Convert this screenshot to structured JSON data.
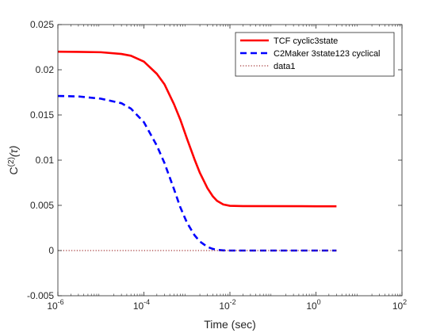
{
  "chart_data": {
    "type": "line",
    "xlabel": "Time (sec)",
    "ylabel": {
      "base": "C",
      "superscript": "(2)",
      "argument": "(τ)"
    },
    "xscale": "log",
    "xlim": [
      1e-06,
      100
    ],
    "ylim": [
      -0.005,
      0.025
    ],
    "x_ticks": [
      {
        "value": 1e-06,
        "base": "10",
        "exp": "-6"
      },
      {
        "value": 0.0001,
        "base": "10",
        "exp": "-4"
      },
      {
        "value": 0.01,
        "base": "10",
        "exp": "-2"
      },
      {
        "value": 1,
        "base": "10",
        "exp": "0"
      },
      {
        "value": 100,
        "base": "10",
        "exp": "2"
      }
    ],
    "y_ticks": [
      {
        "value": -0.005,
        "label": "-0.005"
      },
      {
        "value": 0,
        "label": "0"
      },
      {
        "value": 0.005,
        "label": "0.005"
      },
      {
        "value": 0.01,
        "label": "0.01"
      },
      {
        "value": 0.015,
        "label": "0.015"
      },
      {
        "value": 0.02,
        "label": "0.02"
      },
      {
        "value": 0.025,
        "label": "0.025"
      }
    ],
    "grid": false,
    "legend_position": "top-right",
    "series": [
      {
        "name": "TCF cyclic3state",
        "color": "#ff0000",
        "line_style": "solid",
        "x": [
          1e-06,
          3e-06,
          1e-05,
          3e-05,
          5e-05,
          0.0001,
          0.0002,
          0.0003,
          0.0005,
          0.0007,
          0.001,
          0.0015,
          0.002,
          0.003,
          0.004,
          0.005,
          0.007,
          0.01,
          0.02,
          1,
          3
        ],
        "y": [
          0.022,
          0.02198,
          0.02194,
          0.02175,
          0.02155,
          0.0209,
          0.01955,
          0.0184,
          0.0162,
          0.0145,
          0.0124,
          0.0101,
          0.0086,
          0.0069,
          0.006,
          0.0055,
          0.0051,
          0.00495,
          0.00492,
          0.0049,
          0.0049
        ]
      },
      {
        "name": "C2Maker 3state123 cyclical",
        "color": "#0000ff",
        "line_style": "dashed",
        "x": [
          1e-06,
          3e-06,
          1e-05,
          3e-05,
          5e-05,
          0.0001,
          0.0002,
          0.0003,
          0.0005,
          0.0007,
          0.001,
          0.0015,
          0.002,
          0.003,
          0.004,
          0.005,
          0.007,
          0.01,
          1,
          3
        ],
        "y": [
          0.0171,
          0.01705,
          0.0168,
          0.0163,
          0.0157,
          0.0142,
          0.0116,
          0.0097,
          0.0068,
          0.0048,
          0.0031,
          0.0017,
          0.001,
          0.0004,
          0.00018,
          8e-05,
          2e-05,
          0.0,
          0.0,
          0.0
        ]
      },
      {
        "name": "data1",
        "color": "#8b0000",
        "line_style": "dotted",
        "x": [
          1e-06,
          3
        ],
        "y": [
          0,
          0
        ]
      }
    ]
  }
}
